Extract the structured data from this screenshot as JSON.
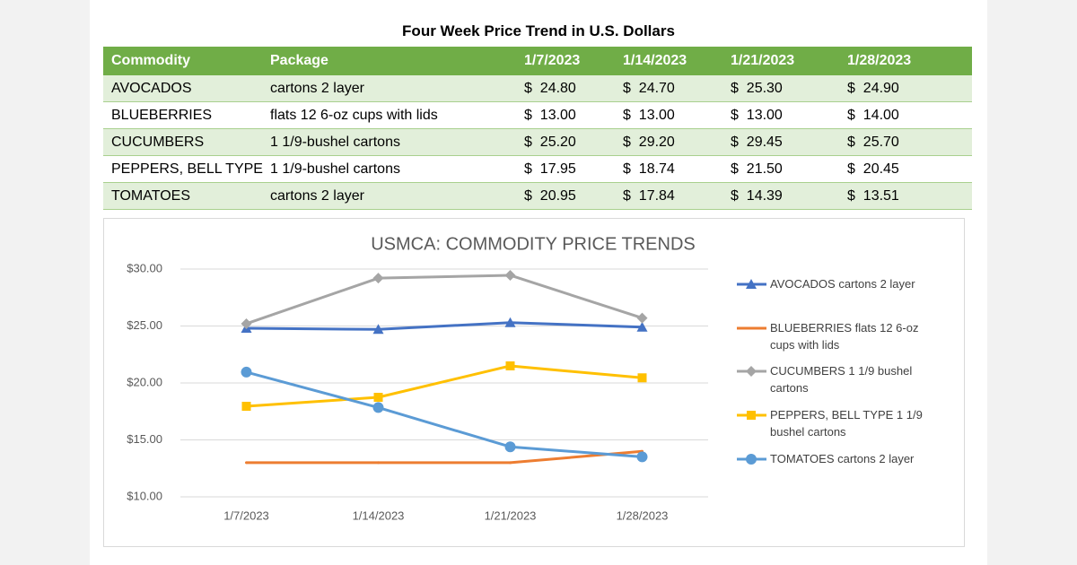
{
  "table": {
    "title": "Four Week Price Trend in U.S. Dollars",
    "header": [
      "Commodity",
      "Package",
      "1/7/2023",
      "1/14/2023",
      "1/21/2023",
      "1/28/2023"
    ],
    "rows": [
      [
        "AVOCADOS",
        "cartons 2 layer",
        "$  24.80",
        "$  24.70",
        "$  25.30",
        "$  24.90"
      ],
      [
        "BLUEBERRIES",
        "flats 12 6-oz cups with lids",
        "$  13.00",
        "$  13.00",
        "$  13.00",
        "$  14.00"
      ],
      [
        "CUCUMBERS",
        "1 1/9-bushel cartons",
        "$  25.20",
        "$  29.20",
        "$  29.45",
        "$  25.70"
      ],
      [
        "PEPPERS, BELL TYPE",
        "1 1/9-bushel cartons",
        "$  17.95",
        "$  18.74",
        "$  21.50",
        "$  20.45"
      ],
      [
        "TOMATOES",
        "cartons 2 layer",
        "$  20.95",
        "$  17.84",
        "$  14.39",
        "$  13.51"
      ]
    ]
  },
  "chart_data": {
    "type": "line",
    "title": "USMCA: COMMODITY PRICE TRENDS",
    "categories": [
      "1/7/2023",
      "1/14/2023",
      "1/21/2023",
      "1/28/2023"
    ],
    "ylim": [
      10,
      30
    ],
    "yticks": [
      {
        "value": 10,
        "label": "$10.00"
      },
      {
        "value": 15,
        "label": "$15.00"
      },
      {
        "value": 20,
        "label": "$20.00"
      },
      {
        "value": 25,
        "label": "$25.00"
      },
      {
        "value": 30,
        "label": "$30.00"
      }
    ],
    "grid": true,
    "legend": "right",
    "series": [
      {
        "name": "AVOCADOS cartons 2 layer",
        "color": "#4472c4",
        "marker": "triangle",
        "values": [
          24.8,
          24.7,
          25.3,
          24.9
        ]
      },
      {
        "name": "BLUEBERRIES flats 12 6-oz cups with lids",
        "color": "#ed7d31",
        "marker": "none",
        "values": [
          13.0,
          13.0,
          13.0,
          14.0
        ]
      },
      {
        "name": "CUCUMBERS 1 1/9 bushel cartons",
        "color": "#a5a5a5",
        "marker": "diamond",
        "values": [
          25.2,
          29.2,
          29.45,
          25.7
        ]
      },
      {
        "name": "PEPPERS, BELL TYPE 1 1/9 bushel cartons",
        "color": "#ffc000",
        "marker": "square",
        "values": [
          17.95,
          18.74,
          21.5,
          20.45
        ]
      },
      {
        "name": "TOMATOES cartons 2 layer",
        "color": "#5b9bd5",
        "marker": "circle",
        "values": [
          20.95,
          17.84,
          14.39,
          13.51
        ]
      }
    ]
  }
}
